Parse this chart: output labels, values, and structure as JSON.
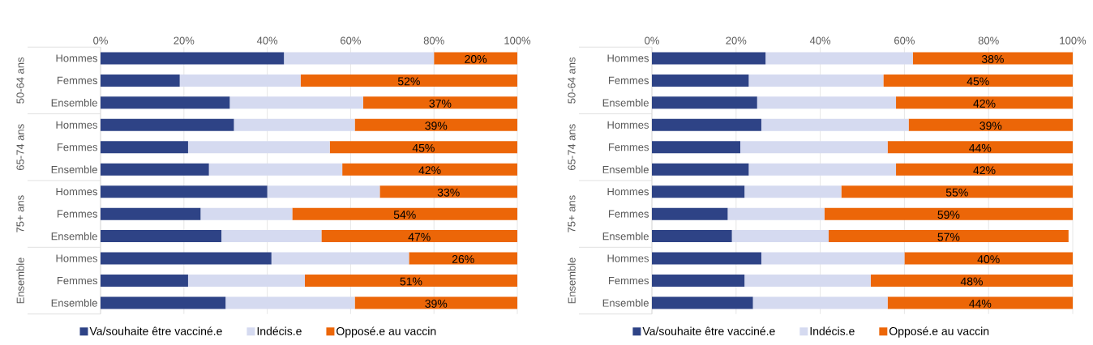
{
  "chart_data": [
    {
      "type": "bar",
      "orientation": "horizontal",
      "stacked": true,
      "grid": "x",
      "legend": "bottom",
      "categories": [
        "Hommes",
        "Femmes",
        "Ensemble",
        "Hommes",
        "Femmes",
        "Ensemble",
        "Hommes",
        "Femmes",
        "Ensemble",
        "Hommes",
        "Femmes",
        "Ensemble"
      ],
      "annotations": [
        "50-64 ans",
        "65-74 ans",
        "75+ ans",
        "Ensemble"
      ],
      "xlim": [
        0,
        100
      ],
      "xticks": [
        {
          "value": 0,
          "label": "0%"
        },
        {
          "value": 20,
          "label": "20%"
        },
        {
          "value": 40,
          "label": "40%"
        },
        {
          "value": 60,
          "label": "60%"
        },
        {
          "value": 80,
          "label": "80%"
        },
        {
          "value": 100,
          "label": "100%"
        }
      ],
      "series": [
        {
          "name": "Va/souhaite être vacciné.e",
          "color": "#2e4386",
          "values": [
            44,
            19,
            31,
            32,
            21,
            26,
            40,
            24,
            29,
            41,
            21,
            30
          ]
        },
        {
          "name": "Indécis.e",
          "color": "#d5daf0",
          "values": [
            36,
            29,
            32,
            29,
            34,
            32,
            27,
            22,
            24,
            33,
            28,
            31
          ]
        },
        {
          "name": "Opposé.e au vaccin",
          "color": "#ec6608",
          "values": [
            20,
            52,
            37,
            39,
            45,
            42,
            33,
            54,
            47,
            26,
            51,
            39
          ],
          "value_labels": [
            "20%",
            "52%",
            "37%",
            "39%",
            "45%",
            "42%",
            "33%",
            "54%",
            "47%",
            "26%",
            "51%",
            "39%"
          ]
        }
      ]
    },
    {
      "type": "bar",
      "orientation": "horizontal",
      "stacked": true,
      "grid": "x",
      "legend": "bottom",
      "categories": [
        "Hommes",
        "Femmes",
        "Ensemble",
        "Hommes",
        "Femmes",
        "Ensemble",
        "Hommes",
        "Femmes",
        "Ensemble",
        "Hommes",
        "Femmes",
        "Ensemble"
      ],
      "annotations": [
        "50-64 ans",
        "65-74 ans",
        "75+ ans",
        "Ensemble"
      ],
      "xlim": [
        0,
        100
      ],
      "xticks": [
        {
          "value": 0,
          "label": "0%"
        },
        {
          "value": 20,
          "label": "20%"
        },
        {
          "value": 40,
          "label": "40%"
        },
        {
          "value": 60,
          "label": "60%"
        },
        {
          "value": 80,
          "label": "80%"
        },
        {
          "value": 100,
          "label": "100%"
        }
      ],
      "series": [
        {
          "name": "Va/souhaite être vacciné.e",
          "color": "#2e4386",
          "values": [
            27,
            23,
            25,
            26,
            21,
            23,
            22,
            18,
            19,
            26,
            22,
            24
          ]
        },
        {
          "name": "Indécis.e",
          "color": "#d5daf0",
          "values": [
            35,
            32,
            33,
            35,
            35,
            35,
            23,
            23,
            23,
            34,
            30,
            32
          ]
        },
        {
          "name": "Opposé.e au vaccin",
          "color": "#ec6608",
          "values": [
            38,
            45,
            42,
            39,
            44,
            42,
            55,
            59,
            57,
            40,
            48,
            44
          ],
          "value_labels": [
            "38%",
            "45%",
            "42%",
            "39%",
            "44%",
            "42%",
            "55%",
            "59%",
            "57%",
            "40%",
            "48%",
            "44%"
          ]
        }
      ]
    }
  ]
}
